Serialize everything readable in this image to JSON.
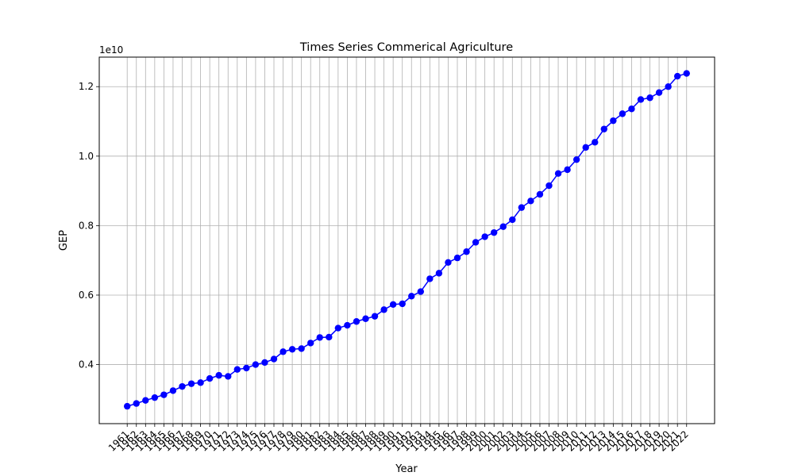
{
  "chart_data": {
    "type": "line",
    "title": "Times Series Commerical Agriculture",
    "xlabel": "Year",
    "ylabel": "GEP",
    "y_offset_label": "1e10",
    "x": [
      "1961",
      "1962",
      "1963",
      "1964",
      "1965",
      "1966",
      "1967",
      "1968",
      "1969",
      "1970",
      "1971",
      "1972",
      "1973",
      "1974",
      "1975",
      "1976",
      "1977",
      "1978",
      "1979",
      "1980",
      "1981",
      "1982",
      "1983",
      "1984",
      "1985",
      "1986",
      "1987",
      "1988",
      "1989",
      "1990",
      "1991",
      "1992",
      "1993",
      "1994",
      "1995",
      "1996",
      "1997",
      "1998",
      "1999",
      "2000",
      "2001",
      "2002",
      "2003",
      "2004",
      "2005",
      "2006",
      "2007",
      "2008",
      "2009",
      "2010",
      "2011",
      "2012",
      "2013",
      "2014",
      "2015",
      "2016",
      "2017",
      "2018",
      "2019",
      "2020",
      "2021",
      "2022"
    ],
    "yticks": [
      "0.4",
      "0.6",
      "0.8",
      "1.0",
      "1.2"
    ],
    "ytick_values": [
      0.4,
      0.6,
      0.8,
      1.0,
      1.2
    ],
    "ylim": [
      0.23,
      1.285
    ],
    "grid": true,
    "line_color": "#0000ff",
    "series": [
      {
        "values": [
          0.28,
          0.288,
          0.297,
          0.305,
          0.313,
          0.325,
          0.337,
          0.345,
          0.348,
          0.36,
          0.369,
          0.366,
          0.386,
          0.39,
          0.4,
          0.406,
          0.416,
          0.437,
          0.444,
          0.446,
          0.462,
          0.478,
          0.479,
          0.505,
          0.513,
          0.524,
          0.532,
          0.539,
          0.558,
          0.573,
          0.575,
          0.597,
          0.61,
          0.647,
          0.663,
          0.694,
          0.707,
          0.725,
          0.752,
          0.768,
          0.78,
          0.797,
          0.817,
          0.852,
          0.871,
          0.89,
          0.915,
          0.95,
          0.961,
          0.99,
          1.025,
          1.04,
          1.078,
          1.102,
          1.122,
          1.136,
          1.163,
          1.168,
          1.183,
          1.2,
          1.23,
          1.238
        ]
      }
    ]
  }
}
